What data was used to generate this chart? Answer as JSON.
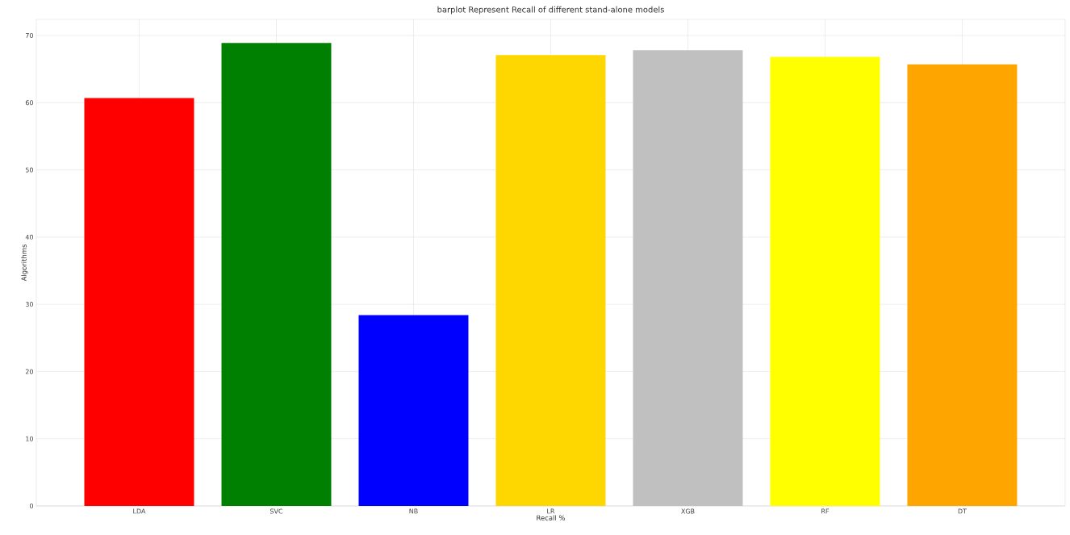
{
  "chart_data": {
    "type": "bar",
    "title": "barplot Represent Recall of different stand-alone models",
    "xlabel": "Recall %",
    "ylabel": "Algorithms",
    "categories": [
      "LDA",
      "SVC",
      "NB",
      "LR",
      "XGB",
      "RF",
      "DT"
    ],
    "values": [
      60.7,
      68.9,
      28.4,
      67.1,
      67.8,
      66.8,
      65.7
    ],
    "colors": [
      "#ff0000",
      "#008000",
      "#0000ff",
      "#ffd700",
      "#c0c0c0",
      "#ffff00",
      "#ffa500"
    ],
    "ylim": [
      0,
      72.4
    ],
    "yticks": [
      0,
      10,
      20,
      30,
      40,
      50,
      60,
      70
    ],
    "grid": true
  }
}
